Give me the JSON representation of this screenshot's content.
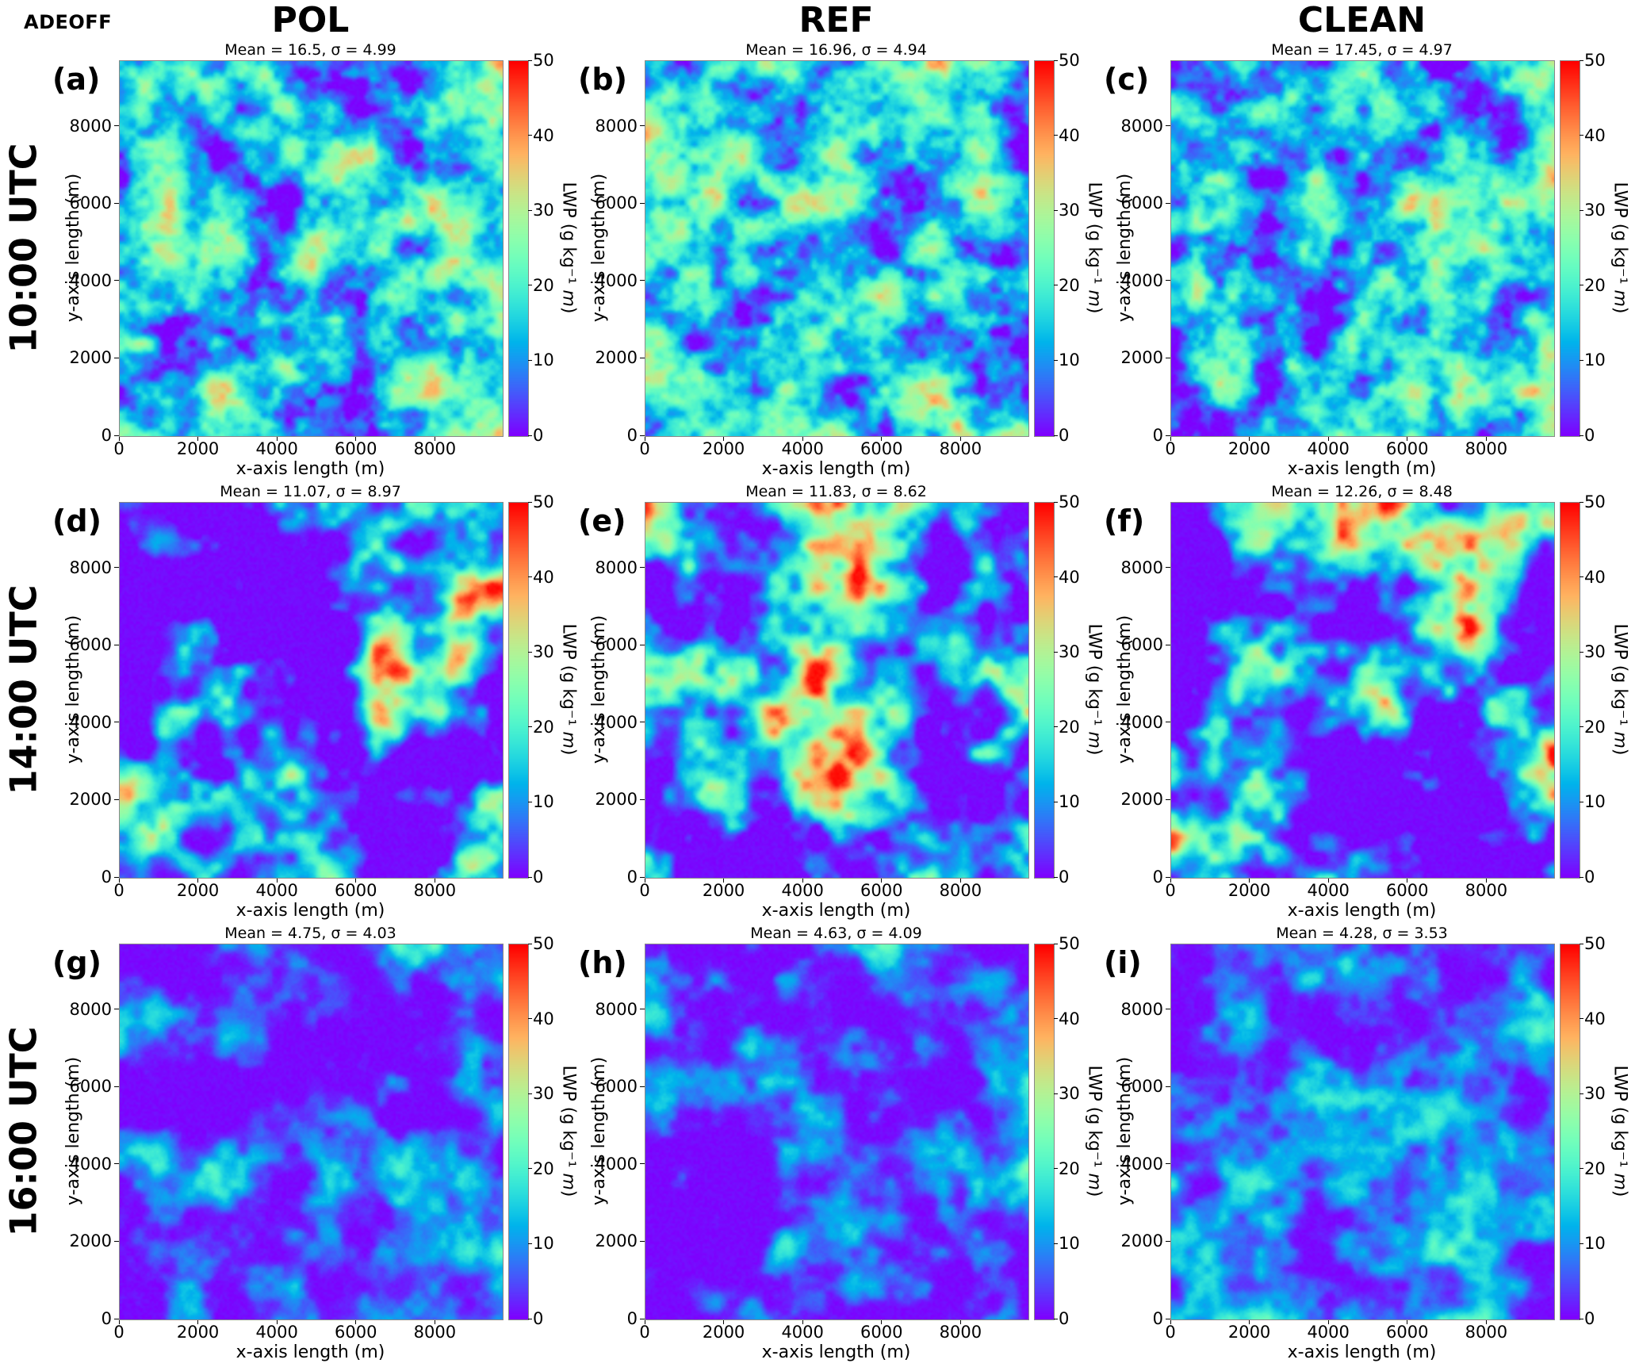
{
  "figure": {
    "corner_label": "ADEOFF",
    "column_titles": [
      "POL",
      "REF",
      "CLEAN"
    ],
    "row_labels": [
      "10:00 UTC",
      "14:00 UTC",
      "16:00 UTC"
    ],
    "xlabel": "x-axis length (m)",
    "ylabel": "y-axis length (m)",
    "axis_ticks": [
      "0",
      "2000",
      "4000",
      "6000",
      "8000"
    ],
    "axis_tick_values": [
      0,
      2000,
      4000,
      6000,
      8000
    ],
    "axis_domain": [
      0,
      9700
    ],
    "colorbar": {
      "label": "LWP (g kg⁻¹ m)",
      "label_prefix": "LWP (g kg⁻¹ ",
      "label_italic": "m",
      "label_suffix": ")",
      "ticks": [
        "0",
        "10",
        "20",
        "30",
        "40",
        "50"
      ],
      "tick_values": [
        0,
        10,
        20,
        30,
        40,
        50
      ],
      "range": [
        0,
        50
      ],
      "colormap": "rainbow",
      "colormap_stops": {
        "0": "#8000ff",
        "10": "#1a96f2",
        "20": "#4df2ce",
        "25": "#80ffb4",
        "30": "#b3f396",
        "40": "#ff9650",
        "50": "#ff0000"
      }
    }
  },
  "chart_data": [
    {
      "type": "heatmap",
      "letter": "a",
      "label": "(a)",
      "column": "POL",
      "time": "10:00 UTC",
      "title": "Mean = 16.5, σ = 4.99",
      "mean": 16.5,
      "sigma": 4.99,
      "value_range": [
        0,
        50
      ],
      "x_range_m": [
        0,
        9700
      ],
      "y_range_m": [
        0,
        9700
      ],
      "description": "closed-cell cloud field, mostly cyan 12-25 with small yellow-green maxima ~30-40 and thin violet cracks near 0"
    },
    {
      "type": "heatmap",
      "letter": "b",
      "label": "(b)",
      "column": "REF",
      "time": "10:00 UTC",
      "title": "Mean = 16.96, σ = 4.94",
      "mean": 16.96,
      "sigma": 4.94,
      "value_range": [
        0,
        50
      ],
      "x_range_m": [
        0,
        9700
      ],
      "y_range_m": [
        0,
        9700
      ],
      "description": "closed-cell cloud field similar to (a)"
    },
    {
      "type": "heatmap",
      "letter": "c",
      "label": "(c)",
      "column": "CLEAN",
      "time": "10:00 UTC",
      "title": "Mean = 17.45, σ = 4.97",
      "mean": 17.45,
      "sigma": 4.97,
      "value_range": [
        0,
        50
      ],
      "x_range_m": [
        0,
        9700
      ],
      "y_range_m": [
        0,
        9700
      ],
      "description": "closed-cell cloud field, slightly higher LWP, a few orange spots"
    },
    {
      "type": "heatmap",
      "letter": "d",
      "label": "(d)",
      "column": "POL",
      "time": "14:00 UTC",
      "title": "Mean = 11.07, σ = 8.97",
      "mean": 11.07,
      "sigma": 8.97,
      "value_range": [
        0,
        50
      ],
      "x_range_m": [
        0,
        9700
      ],
      "y_range_m": [
        0,
        9700
      ],
      "description": "broken cloud decks: large violet clear regions near 0 and cyan clouds with yellow-orange cores up to ~45"
    },
    {
      "type": "heatmap",
      "letter": "e",
      "label": "(e)",
      "column": "REF",
      "time": "14:00 UTC",
      "title": "Mean = 11.83, σ = 8.62",
      "mean": 11.83,
      "sigma": 8.62,
      "value_range": [
        0,
        50
      ],
      "x_range_m": [
        0,
        9700
      ],
      "y_range_m": [
        0,
        9700
      ],
      "description": "broken cloud decks with orange cores, violet gaps"
    },
    {
      "type": "heatmap",
      "letter": "f",
      "label": "(f)",
      "column": "CLEAN",
      "time": "14:00 UTC",
      "title": "Mean = 12.26, σ = 8.48",
      "mean": 12.26,
      "sigma": 8.48,
      "value_range": [
        0,
        50
      ],
      "x_range_m": [
        0,
        9700
      ],
      "y_range_m": [
        0,
        9700
      ],
      "description": "broken cloud decks, strongest orange core cluster upper right"
    },
    {
      "type": "heatmap",
      "letter": "g",
      "label": "(g)",
      "column": "POL",
      "time": "16:00 UTC",
      "title": "Mean = 4.75, σ = 4.03",
      "mean": 4.75,
      "sigma": 4.03,
      "value_range": [
        0,
        50
      ],
      "x_range_m": [
        0,
        9700
      ],
      "y_range_m": [
        0,
        9700
      ],
      "description": "dissipating field: violet background with blue patches and scattered cyan maxima ~15-20"
    },
    {
      "type": "heatmap",
      "letter": "h",
      "label": "(h)",
      "column": "REF",
      "time": "16:00 UTC",
      "title": "Mean = 4.63, σ = 4.09",
      "mean": 4.63,
      "sigma": 4.09,
      "value_range": [
        0,
        50
      ],
      "x_range_m": [
        0,
        9700
      ],
      "y_range_m": [
        0,
        9700
      ],
      "description": "dissipating field, violet dominant with blue-cyan patches"
    },
    {
      "type": "heatmap",
      "letter": "i",
      "label": "(i)",
      "column": "CLEAN",
      "time": "16:00 UTC",
      "title": "Mean = 4.28, σ = 3.53",
      "mean": 4.28,
      "sigma": 3.53,
      "value_range": [
        0,
        50
      ],
      "x_range_m": [
        0,
        9700
      ],
      "y_range_m": [
        0,
        9700
      ],
      "description": "dissipating field, weakest amplitudes, violet dominant"
    }
  ]
}
